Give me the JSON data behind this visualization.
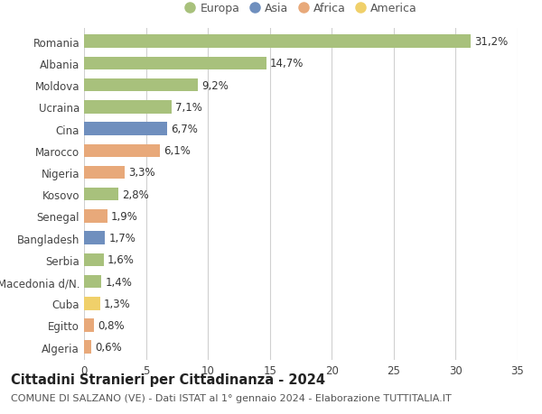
{
  "countries": [
    "Romania",
    "Albania",
    "Moldova",
    "Ucraina",
    "Cina",
    "Marocco",
    "Nigeria",
    "Kosovo",
    "Senegal",
    "Bangladesh",
    "Serbia",
    "Macedonia d/N.",
    "Cuba",
    "Egitto",
    "Algeria"
  ],
  "values": [
    31.2,
    14.7,
    9.2,
    7.1,
    6.7,
    6.1,
    3.3,
    2.8,
    1.9,
    1.7,
    1.6,
    1.4,
    1.3,
    0.8,
    0.6
  ],
  "labels": [
    "31,2%",
    "14,7%",
    "9,2%",
    "7,1%",
    "6,7%",
    "6,1%",
    "3,3%",
    "2,8%",
    "1,9%",
    "1,7%",
    "1,6%",
    "1,4%",
    "1,3%",
    "0,8%",
    "0,6%"
  ],
  "continents": [
    "Europa",
    "Europa",
    "Europa",
    "Europa",
    "Asia",
    "Africa",
    "Africa",
    "Europa",
    "Africa",
    "Asia",
    "Europa",
    "Europa",
    "America",
    "Africa",
    "Africa"
  ],
  "continent_colors": {
    "Europa": "#a8c17c",
    "Asia": "#6f8fbe",
    "Africa": "#e8a97a",
    "America": "#f0d06a"
  },
  "legend_order": [
    "Europa",
    "Asia",
    "Africa",
    "America"
  ],
  "xlim": [
    0,
    35
  ],
  "xticks": [
    0,
    5,
    10,
    15,
    20,
    25,
    30,
    35
  ],
  "title": "Cittadini Stranieri per Cittadinanza - 2024",
  "subtitle": "COMUNE DI SALZANO (VE) - Dati ISTAT al 1° gennaio 2024 - Elaborazione TUTTITALIA.IT",
  "background_color": "#ffffff",
  "grid_color": "#d0d0d0",
  "bar_height": 0.6,
  "label_fontsize": 8.5,
  "tick_fontsize": 8.5,
  "title_fontsize": 10.5,
  "subtitle_fontsize": 8.0
}
